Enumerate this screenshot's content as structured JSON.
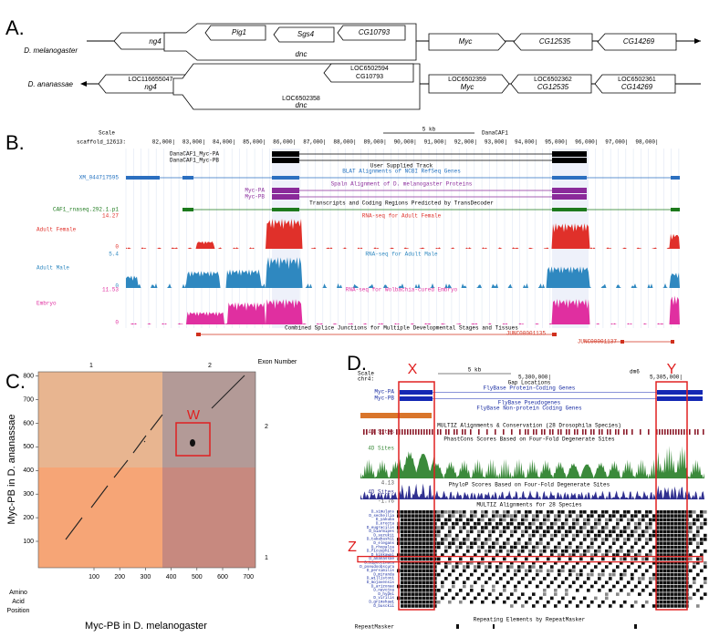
{
  "panel_a": {
    "label": "A.",
    "mel": {
      "species": "D. melanogaster",
      "genes": [
        "ng4",
        "Pig1",
        "Sgs4",
        "CG10793",
        "dnc",
        "Myc",
        "CG12535",
        "CG14269"
      ]
    },
    "ana": {
      "species": "D. ananassae",
      "genes": [
        {
          "id": "LOC116655047",
          "name": "ng4"
        },
        {
          "id": "LOC6502358",
          "name": "dnc"
        },
        {
          "id": "LOC6502594",
          "name": "CG10793"
        },
        {
          "id": "LOC6502359",
          "name": "Myc"
        },
        {
          "id": "LOC6502362",
          "name": "CG12535"
        },
        {
          "id": "LOC6502361",
          "name": "CG14269"
        }
      ]
    }
  },
  "panel_b": {
    "label": "B.",
    "scale": "Scale",
    "chrom": "scaffold_12613:",
    "scale_bar": "5 kb",
    "assembly": "DanaCAF1",
    "ticks": [
      "82,000|",
      "83,000|",
      "84,000|",
      "85,000|",
      "86,000|",
      "87,000|",
      "88,000|",
      "89,000|",
      "90,000|",
      "91,000|",
      "92,000|",
      "93,000|",
      "94,000|",
      "95,000|",
      "96,000|",
      "97,000|",
      "98,000|"
    ],
    "user_track": {
      "rows": [
        "DanaCAF1_Myc-PA",
        "DanaCAF1_Myc-PB"
      ],
      "title": "User Supplied Track"
    },
    "blat": {
      "title": "BLAT Alignments of NCBI RefSeq Genes",
      "row": "XM_044717595"
    },
    "spaln": {
      "title": "Spaln Alignment of D. melanogaster Proteins",
      "rows": [
        "Myc-PA",
        "Myc-PB"
      ]
    },
    "transdecoder": {
      "title": "Transcripts and Coding Regions Predicted by TransDecoder",
      "row": "CAF1_rnaseq.292.1.p1"
    },
    "rnaseq": [
      {
        "max": "14.27",
        "title": "RNA-seq for Adult Female",
        "label": "Adult Female",
        "min": "0"
      },
      {
        "max": "5.4",
        "title": "RNA-seq for Adult Male",
        "label": "Adult Male",
        "min": "0"
      },
      {
        "max": "11.53",
        "title": "RNA-seq for Wolbachia-cured Embryo",
        "label": "Embryo",
        "min": "0"
      }
    ],
    "junctions": {
      "title": "Combined Splice Junctions for Multiple Developmental Stages and Tissues",
      "rows": [
        "JUNC00001135",
        "JUNC00001137"
      ]
    }
  },
  "panel_c": {
    "label": "C.",
    "exon_header": "Exon Number",
    "exons_x": [
      "1",
      "2"
    ],
    "exons_y": [
      "2",
      "1"
    ],
    "marker": "W",
    "xticks": [
      "100",
      "200",
      "300",
      "400",
      "500",
      "600",
      "700"
    ],
    "yticks": [
      "100",
      "200",
      "300",
      "400",
      "500",
      "600",
      "700",
      "800"
    ],
    "xlabel": "Myc-PB in D. melanogaster",
    "ylabel": "Myc-PB in D. ananassae",
    "corner": [
      "Amino",
      "Acid",
      "Position"
    ]
  },
  "panel_d": {
    "label": "D.",
    "markers": [
      "X",
      "Y",
      "Z"
    ],
    "scale": "Scale",
    "chrom": "chr4:",
    "scale_bar": "5 kb",
    "assembly": "dm6",
    "coords": [
      "5,300,000|",
      "5,305,000|"
    ],
    "gap": "Gap Locations",
    "genes_title": "FlyBase Protein-Coding Genes",
    "genes": [
      "Myc-PA",
      "Myc-PB"
    ],
    "pseudo": "FlyBase Pseudogenes",
    "noncoding": "FlyBase Non-protein Coding Genes",
    "multiz": "MULTIZ Alignments & Conservation (28 Drosophila Species)",
    "phastcons": "PhastCons Scores Based on Four-Fold Degenerate Sites",
    "phylop": "PhyloP Scores Based on Four-Fold Degenerate Sites",
    "sites": [
      "4D Sites",
      "4D Sites",
      "4D Sites"
    ],
    "phylop_max": "4.13",
    "phylop_min": "-1.76",
    "align_title": "MULTIZ Alignments for 28 Species",
    "species": [
      "D_simulans",
      "D_sechellia",
      "D_yakuba",
      "D_erecta",
      "D_eugracilis",
      "D_biarmipes",
      "D_suzukii",
      "D_takahashii",
      "D_elegans",
      "D_rhopaloa",
      "D_ficusphila",
      "D_kikkawai",
      "D_ananassae",
      "D_bipectinata",
      "D_pseudoobscura",
      "D_persimilis",
      "D_miranda",
      "D_willistoni",
      "D_mojavensis",
      "D_arizonae",
      "D_navojoa",
      "D_hydei",
      "D_virilis",
      "D_grimshawi",
      "D_busckii"
    ],
    "repeat_title": "Repeating Elements by RepeatMasker",
    "repeat": "RepeatMasker"
  }
}
